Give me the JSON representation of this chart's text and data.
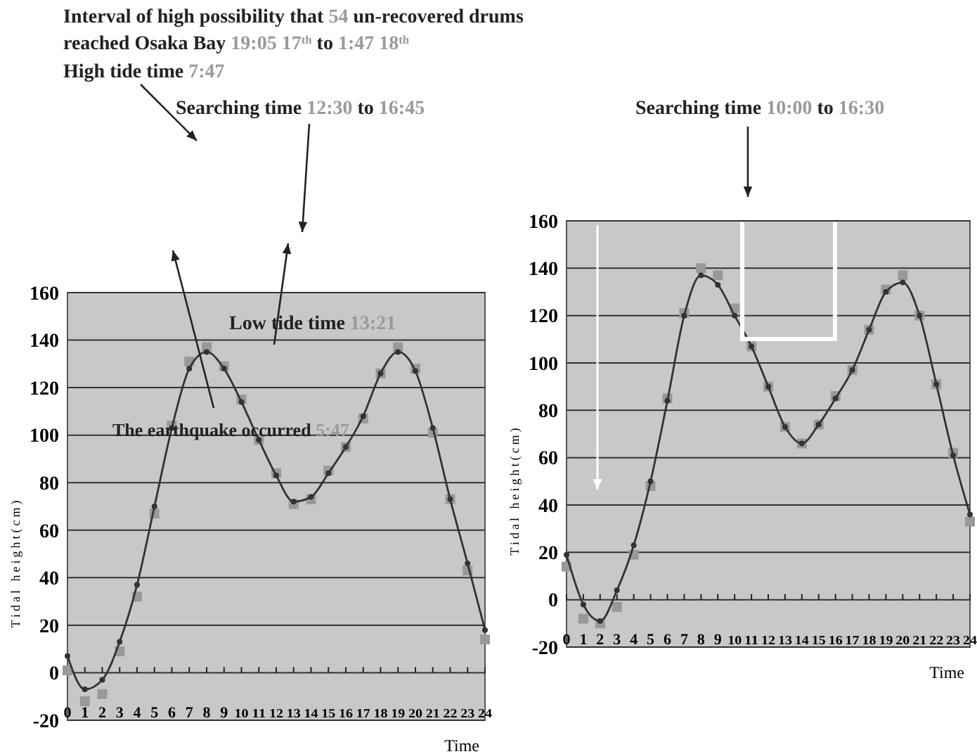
{
  "chart_data": [
    {
      "type": "line",
      "xlabel": "Time",
      "ylabel": "Tidal height(cm)",
      "x": [
        0,
        1,
        2,
        3,
        4,
        5,
        6,
        7,
        8,
        9,
        10,
        11,
        12,
        13,
        14,
        15,
        16,
        17,
        18,
        19,
        20,
        21,
        22,
        23,
        24
      ],
      "xlim": [
        0,
        24
      ],
      "xticks": [
        0,
        1,
        2,
        3,
        4,
        5,
        6,
        7,
        8,
        9,
        10,
        11,
        12,
        13,
        14,
        15,
        16,
        17,
        18,
        19,
        20,
        21,
        22,
        23,
        24
      ],
      "ylim": [
        -20,
        160
      ],
      "yticks": [
        -20,
        0,
        20,
        40,
        60,
        80,
        100,
        120,
        140,
        160
      ],
      "grid": "y",
      "series": [
        {
          "type": "line",
          "color": "#333333",
          "marker": "circle",
          "values": [
            7,
            -7,
            -3,
            13,
            37,
            70,
            103,
            128,
            135,
            128,
            114,
            98,
            83,
            72,
            74,
            84,
            95,
            108,
            126,
            135,
            127,
            103,
            73,
            46,
            18
          ]
        },
        {
          "type": "scatter",
          "color": "#999999",
          "marker": "square",
          "values": [
            1,
            -12,
            -9,
            9,
            32,
            67,
            104,
            131,
            137,
            129,
            115,
            98,
            84,
            71,
            73,
            85,
            95,
            107,
            126,
            137,
            128,
            101,
            73,
            43,
            14
          ]
        }
      ],
      "annotations": [
        "Interval of high possibility that 54 un-recovered drums reached Osaka Bay 19:05 17$^{th}$ to 1:47 18$^{th}$",
        "High tide time 7:47",
        "Searching time 12:30 to 16:45",
        "Low tide time 13:21",
        "The earthquake occurred 5:47"
      ]
    },
    {
      "type": "line",
      "xlabel": "Time",
      "ylabel": "Tidal height(cm)",
      "x": [
        0,
        1,
        2,
        3,
        4,
        5,
        6,
        7,
        8,
        9,
        10,
        11,
        12,
        13,
        14,
        15,
        16,
        17,
        18,
        19,
        20,
        21,
        22,
        23,
        24
      ],
      "xlim": [
        0,
        24
      ],
      "xticks": [
        0,
        1,
        2,
        3,
        4,
        5,
        6,
        7,
        8,
        9,
        10,
        11,
        12,
        13,
        14,
        15,
        16,
        17,
        18,
        19,
        20,
        21,
        22,
        23,
        24
      ],
      "ylim": [
        -20,
        160
      ],
      "yticks": [
        -20,
        0,
        20,
        40,
        60,
        80,
        100,
        120,
        140,
        160
      ],
      "grid": "y",
      "series": [
        {
          "type": "line",
          "color": "#333333",
          "marker": "circle",
          "values": [
            19,
            -2,
            -9,
            4,
            23,
            50,
            84,
            120,
            137,
            133,
            120,
            107,
            90,
            73,
            66,
            74,
            85,
            97,
            114,
            130,
            134,
            120,
            91,
            61,
            36
          ]
        },
        {
          "type": "scatter",
          "color": "#999999",
          "marker": "square",
          "values": [
            14,
            -8,
            -10,
            -3,
            19,
            48,
            85,
            121,
            140,
            137,
            123,
            107,
            90,
            73,
            66,
            74,
            86,
            97,
            114,
            131,
            137,
            120,
            91,
            62,
            33
          ]
        }
      ],
      "annotations": [
        "Searching time 10:00 to 16:30"
      ]
    }
  ]
}
